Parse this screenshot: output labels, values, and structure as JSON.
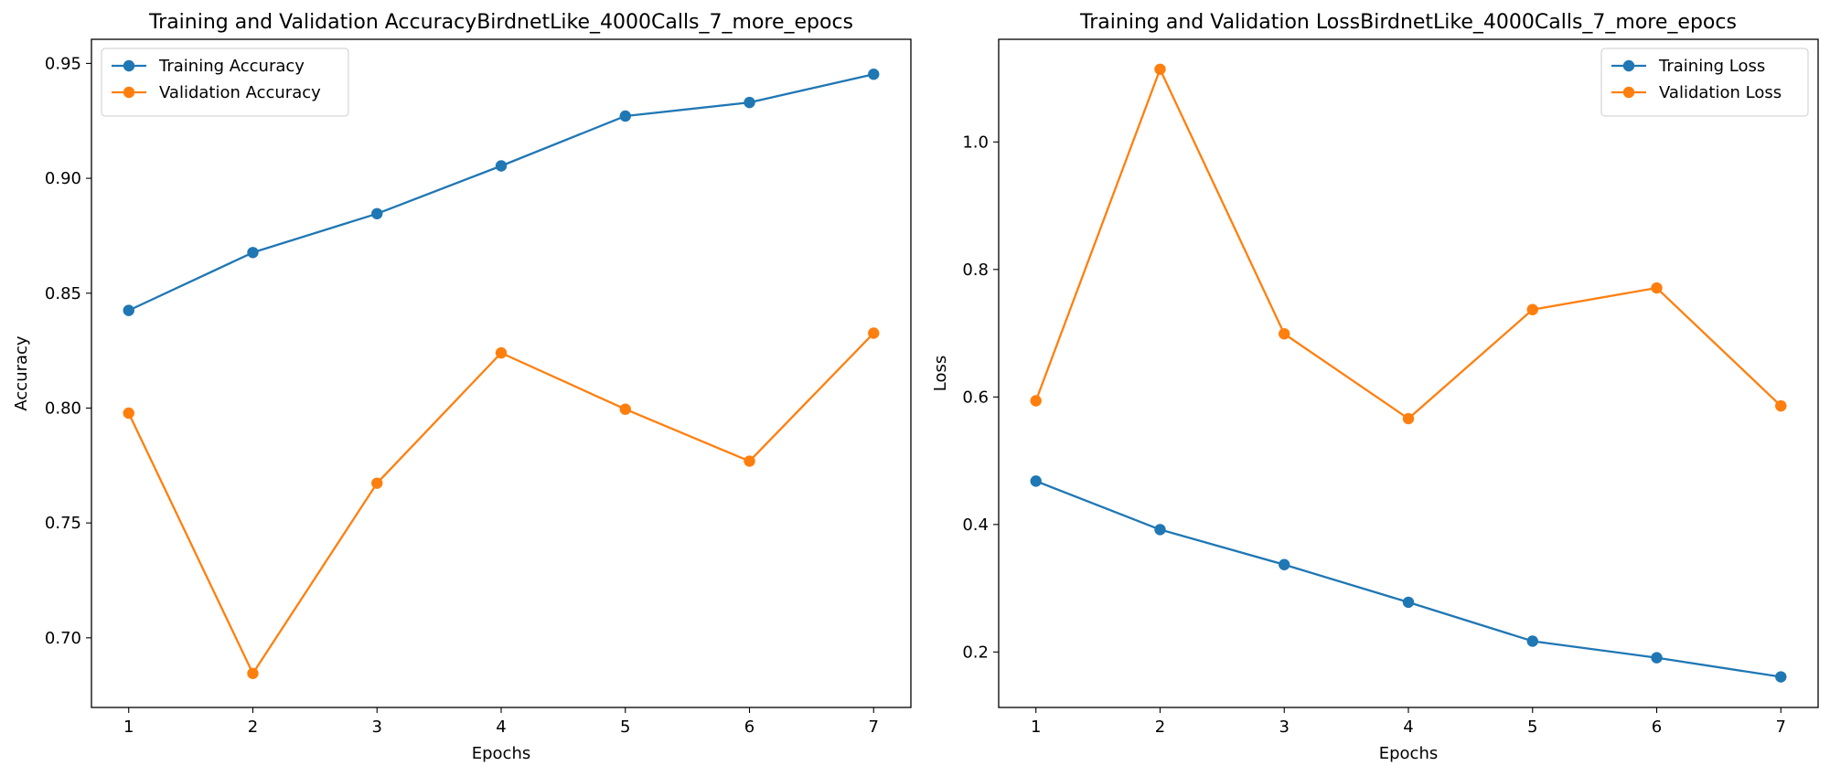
{
  "chart_data": [
    {
      "type": "line",
      "title": "Training and Validation AccuracyBirdnetLike_4000Calls_7_more_epocs",
      "xlabel": "Epochs",
      "ylabel": "Accuracy",
      "x": [
        1,
        2,
        3,
        4,
        5,
        6,
        7
      ],
      "xlim": [
        0.7,
        7.3
      ],
      "ylim": [
        0.6697,
        0.9605
      ],
      "xticks": [
        1,
        2,
        3,
        4,
        5,
        6,
        7
      ],
      "yticks": [
        0.7,
        0.75,
        0.8,
        0.85,
        0.9,
        0.95
      ],
      "ytick_labels": [
        "0.70",
        "0.75",
        "0.80",
        "0.85",
        "0.90",
        "0.95"
      ],
      "grid": false,
      "legend_position": "top-left",
      "series": [
        {
          "name": "Training Accuracy",
          "color": "#1f77b4",
          "values": [
            0.8425,
            0.8677,
            0.8846,
            0.9054,
            0.9271,
            0.933,
            0.9453
          ]
        },
        {
          "name": "Validation Accuracy",
          "color": "#ff7f0e",
          "values": [
            0.7978,
            0.6845,
            0.7673,
            0.824,
            0.7995,
            0.7769,
            0.8326
          ]
        }
      ]
    },
    {
      "type": "line",
      "title": "Training and Validation LossBirdnetLike_4000Calls_7_more_epocs",
      "xlabel": "Epochs",
      "ylabel": "Loss",
      "x": [
        1,
        2,
        3,
        4,
        5,
        6,
        7
      ],
      "xlim": [
        0.7,
        7.3
      ],
      "ylim": [
        0.113,
        1.161
      ],
      "xticks": [
        1,
        2,
        3,
        4,
        5,
        6,
        7
      ],
      "yticks": [
        0.2,
        0.4,
        0.6,
        0.8,
        1.0
      ],
      "ytick_labels": [
        "0.2",
        "0.4",
        "0.6",
        "0.8",
        "1.0"
      ],
      "grid": false,
      "legend_position": "top-right",
      "series": [
        {
          "name": "Training Loss",
          "color": "#1f77b4",
          "values": [
            0.468,
            0.392,
            0.337,
            0.278,
            0.217,
            0.191,
            0.161
          ]
        },
        {
          "name": "Validation Loss",
          "color": "#ff7f0e",
          "values": [
            0.594,
            1.114,
            0.699,
            0.566,
            0.737,
            0.771,
            0.586
          ]
        }
      ]
    }
  ]
}
